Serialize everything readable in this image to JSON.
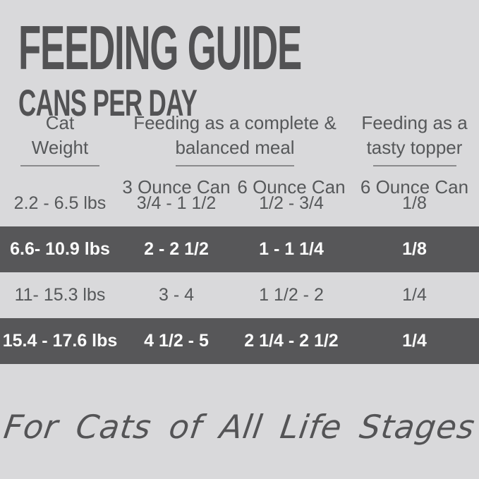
{
  "colors": {
    "background": "#d9d9db",
    "title_text": "#525254",
    "body_text": "#56585a",
    "highlight_row_bg": "#575759",
    "highlight_row_text": "#fbfbfb",
    "underline": "#8a8a8c"
  },
  "header": {
    "title": "FEEDING GUIDE",
    "subtitle": "CANS PER DAY"
  },
  "table": {
    "column_groups": [
      {
        "line1": "Cat",
        "line2": "Weight"
      },
      {
        "line1": "Feeding as a complete &",
        "line2": "balanced meal"
      },
      {
        "line1": "Feeding as a",
        "line2": "tasty topper"
      }
    ],
    "sub_headers": [
      "3 Ounce Can",
      "6 Ounce Can",
      "6 Ounce Can"
    ],
    "rows": [
      {
        "weight": "2.2 - 6.5 lbs",
        "complete_3oz": "3/4 - 1 1/2",
        "complete_6oz": "1/2 - 3/4",
        "topper_6oz": "1/8",
        "highlighted": false
      },
      {
        "weight": "6.6- 10.9 lbs",
        "complete_3oz": "2 - 2 1/2",
        "complete_6oz": "1 - 1 1/4",
        "topper_6oz": "1/8",
        "highlighted": true
      },
      {
        "weight": "11- 15.3 lbs",
        "complete_3oz": "3 - 4",
        "complete_6oz": "1 1/2 - 2",
        "topper_6oz": "1/4",
        "highlighted": false
      },
      {
        "weight": "15.4 - 17.6 lbs",
        "complete_3oz": "4 1/2 - 5",
        "complete_6oz": "2 1/4 - 2 1/2",
        "topper_6oz": "1/4",
        "highlighted": true
      }
    ]
  },
  "footer": {
    "tagline": "For Cats of All Life Stages"
  },
  "chart_data": {
    "type": "table",
    "title": "FEEDING GUIDE",
    "subtitle": "CANS PER DAY",
    "columns": [
      "Cat Weight",
      "Feeding as a complete & balanced meal — 3 Ounce Can",
      "Feeding as a complete & balanced meal — 6 Ounce Can",
      "Feeding as a tasty topper — 6 Ounce Can"
    ],
    "rows": [
      [
        "2.2 - 6.5 lbs",
        "3/4 - 1 1/2",
        "1/2 - 3/4",
        "1/8"
      ],
      [
        "6.6- 10.9 lbs",
        "2 - 2 1/2",
        "1 - 1 1/4",
        "1/8"
      ],
      [
        "11- 15.3 lbs",
        "3 - 4",
        "1 1/2 - 2",
        "1/4"
      ],
      [
        "15.4 - 17.6 lbs",
        "4 1/2 - 5",
        "2 1/4 - 2 1/2",
        "1/4"
      ]
    ],
    "highlighted_rows": [
      1,
      3
    ],
    "footnote": "For Cats of All Life Stages"
  }
}
